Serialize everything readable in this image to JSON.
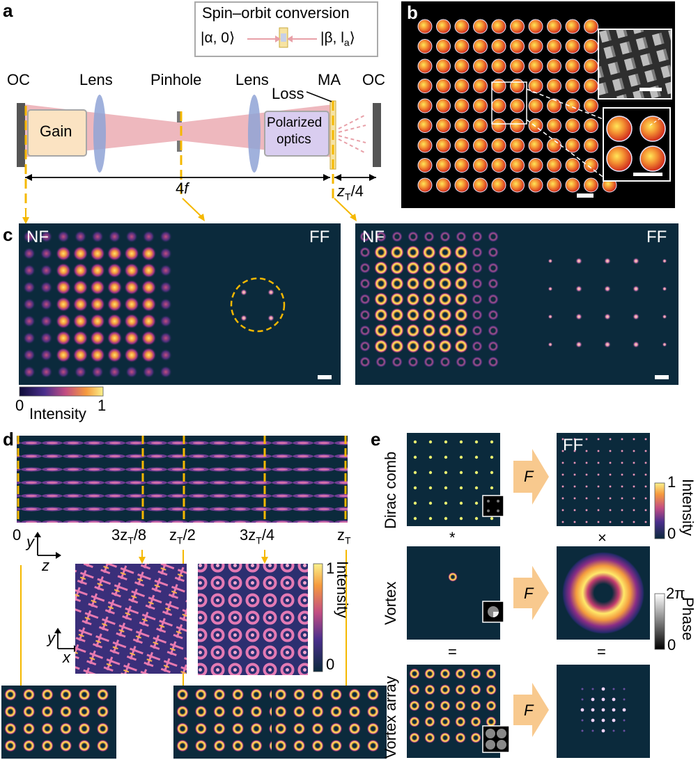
{
  "panel_a": {
    "letter": "a",
    "spin_box_title": "Spin–orbit conversion",
    "ket_in": "|α, 0⟩",
    "ket_out": "|β, l",
    "ket_out_sub": "a",
    "ket_out_close": "⟩",
    "labels": {
      "oc_left": "OC",
      "lens1": "Lens",
      "pinhole": "Pinhole",
      "lens2": "Lens",
      "ma": "MA",
      "oc_right": "OC",
      "loss": "Loss",
      "gain": "Gain",
      "polarized": "Polarized",
      "optics": "optics",
      "length_4f_num": "4",
      "length_4f_var": "f",
      "zt_z": "z",
      "zt_sub": "T",
      "zt_rest": "/4"
    }
  },
  "panel_b": {
    "letter": "b"
  },
  "panel_c": {
    "letter": "c",
    "nf": "NF",
    "ff": "FF",
    "nf2": "NF",
    "ff2": "FF",
    "colorbar_min": "0",
    "colorbar_label": "Intensity",
    "colorbar_max": "1"
  },
  "panel_d": {
    "letter": "d",
    "ticks": [
      "0",
      "3z",
      "z",
      "3z",
      "z"
    ],
    "tick0": "0",
    "tick1_pre": "3z",
    "tick1_sub": "T",
    "tick1_post": "/8",
    "tick2_pre": "z",
    "tick2_sub": "T",
    "tick2_post": "/2",
    "tick3_pre": "3z",
    "tick3_sub": "T",
    "tick3_post": "/4",
    "tick4_pre": "z",
    "tick4_sub": "T",
    "axis_y": "y",
    "axis_z": "z",
    "axis_x": "x",
    "colorbar_max": "1",
    "colorbar_min": "0",
    "colorbar_label": "Intensity"
  },
  "panel_e": {
    "letter": "e",
    "row1": "Dirac comb",
    "row2": "Vortex",
    "row3": "Vortex array",
    "ff": "FF",
    "op_conv": "*",
    "op_mult": "×",
    "eq1": "=",
    "eq2": "=",
    "fourier": "F",
    "intensity_label": "Intensity",
    "intensity_max": "1",
    "intensity_min": "0",
    "phase_label": "Phase",
    "phase_max": "2π",
    "phase_min": "0"
  },
  "colors": {
    "dark_bg": "#0b2a3c",
    "accent_yellow": "#f5b800",
    "beam_pink": "#e8a0a8",
    "lens_blue": "#8fa3d6",
    "gain_fill": "#fbe3c2",
    "optics_fill": "#d9cdf0",
    "arrow_orange": "#f8c98e"
  }
}
